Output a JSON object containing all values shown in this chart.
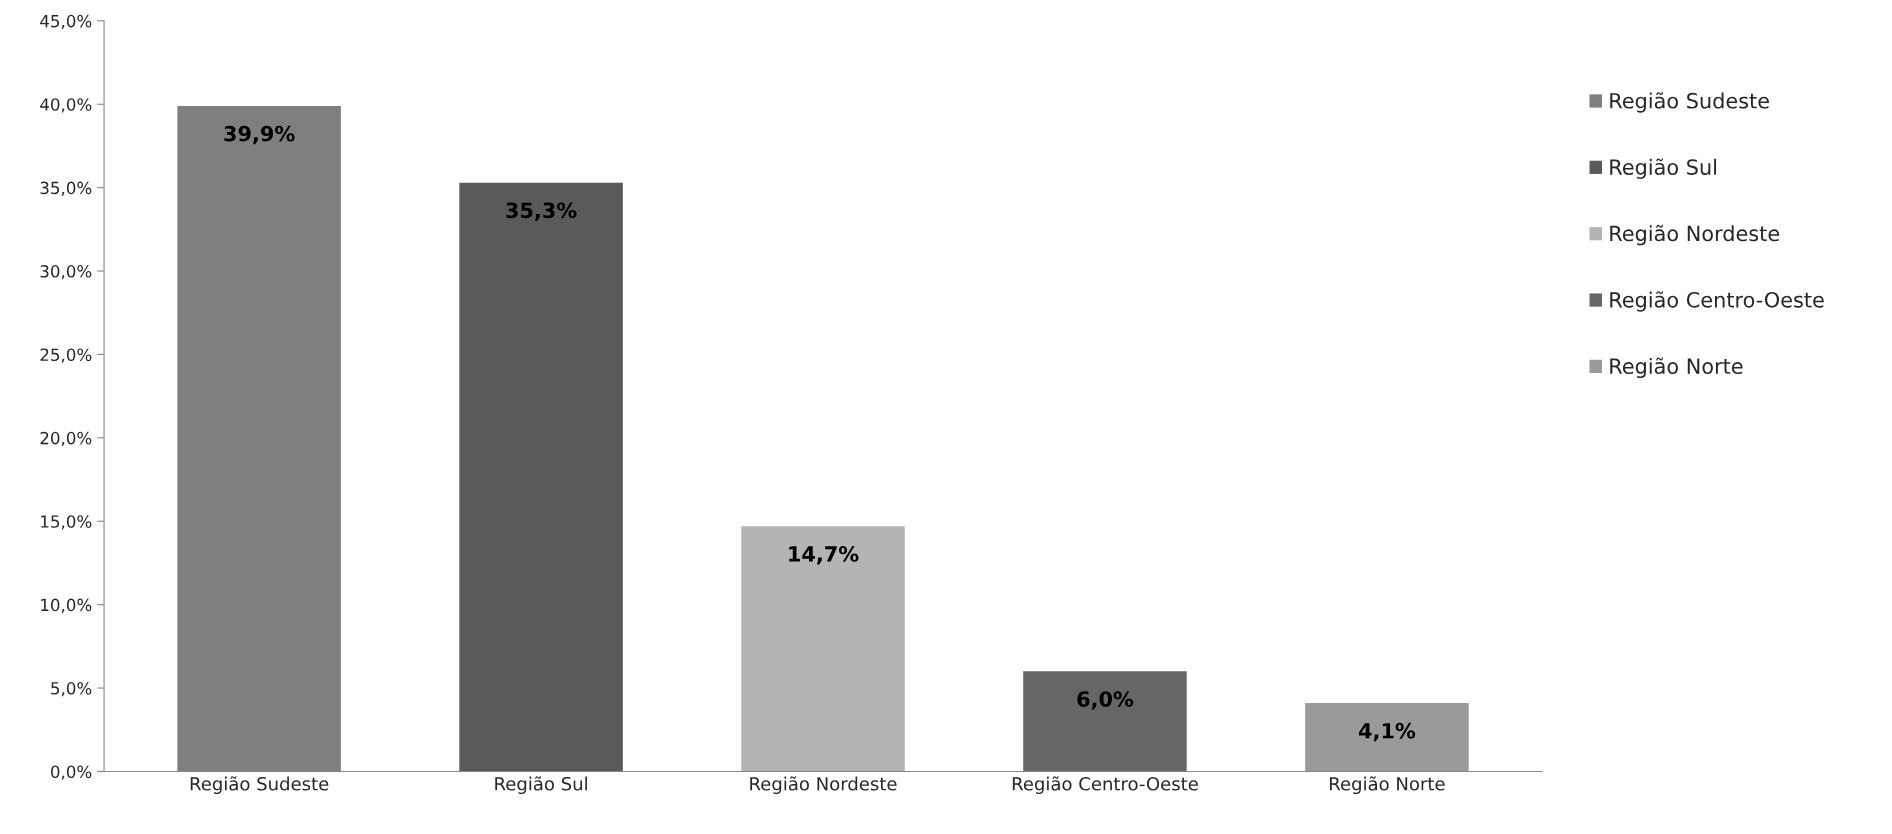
{
  "chart_data": {
    "type": "bar",
    "categories": [
      "Região Sudeste",
      "Região Sul",
      "Região Nordeste",
      "Região Centro-Oeste",
      "Região Norte"
    ],
    "series": [
      {
        "name": "Região Sudeste",
        "color": "#7f7f7f",
        "values": [
          39.9,
          null,
          null,
          null,
          null
        ],
        "value_labels": [
          "39,9%",
          null,
          null,
          null,
          null
        ]
      },
      {
        "name": "Região Sul",
        "color": "#5a5a5a",
        "values": [
          null,
          35.3,
          null,
          null,
          null
        ],
        "value_labels": [
          null,
          "35,3%",
          null,
          null,
          null
        ]
      },
      {
        "name": "Região Nordeste",
        "color": "#b4b4b4",
        "values": [
          null,
          null,
          14.7,
          null,
          null
        ],
        "value_labels": [
          null,
          null,
          "14,7%",
          null,
          null
        ]
      },
      {
        "name": "Região Centro-Oeste",
        "color": "#666666",
        "values": [
          null,
          null,
          null,
          6.0,
          null
        ],
        "value_labels": [
          null,
          null,
          null,
          "6,0%",
          null
        ]
      },
      {
        "name": "Região Norte",
        "color": "#9a9a9a",
        "values": [
          null,
          null,
          null,
          null,
          4.1
        ],
        "value_labels": [
          null,
          null,
          null,
          null,
          "4,1%"
        ]
      }
    ],
    "ylim": [
      0,
      45
    ],
    "yticks": [
      {
        "value": 0,
        "label": "0,0%"
      },
      {
        "value": 5,
        "label": "5,0%"
      },
      {
        "value": 10,
        "label": "10,0%"
      },
      {
        "value": 15,
        "label": "15,0%"
      },
      {
        "value": 20,
        "label": "20,0%"
      },
      {
        "value": 25,
        "label": "25,0%"
      },
      {
        "value": 30,
        "label": "30,0%"
      },
      {
        "value": 35,
        "label": "35,0%"
      },
      {
        "value": 40,
        "label": "40,0%"
      },
      {
        "value": 45,
        "label": "45,0%"
      }
    ],
    "legend": "right"
  }
}
